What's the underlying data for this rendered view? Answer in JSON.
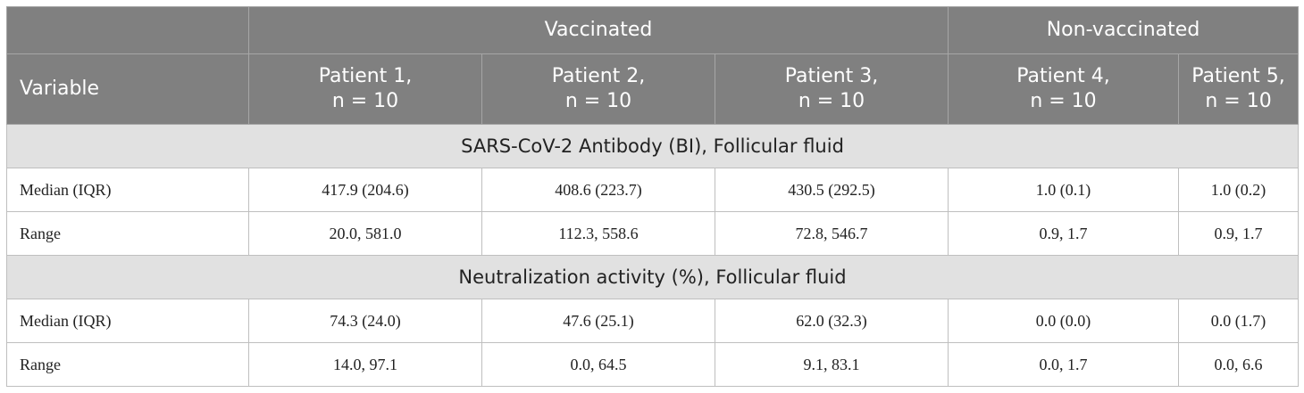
{
  "header": {
    "group_vaccinated": "Vaccinated",
    "group_nonvaccinated": "Non-vaccinated",
    "variable_label": "Variable",
    "patients": [
      {
        "name": "Patient 1,",
        "n": "n = 10"
      },
      {
        "name": "Patient 2,",
        "n": "n = 10"
      },
      {
        "name": "Patient 3,",
        "n": "n = 10"
      },
      {
        "name": "Patient 4,",
        "n": "n = 10"
      },
      {
        "name": "Patient 5,",
        "n": "n = 10"
      }
    ]
  },
  "sections": [
    {
      "title": "SARS-CoV-2 Antibody (BI), Follicular fluid",
      "rows": [
        {
          "label": "Median (IQR)",
          "values": [
            "417.9 (204.6)",
            "408.6 (223.7)",
            "430.5 (292.5)",
            "1.0 (0.1)",
            "1.0 (0.2)"
          ]
        },
        {
          "label": "Range",
          "values": [
            "20.0, 581.0",
            "112.3, 558.6",
            "72.8, 546.7",
            "0.9, 1.7",
            "0.9, 1.7"
          ]
        }
      ]
    },
    {
      "title": "Neutralization activity (%), Follicular fluid",
      "rows": [
        {
          "label": "Median (IQR)",
          "values": [
            "74.3 (24.0)",
            "47.6 (25.1)",
            "62.0 (32.3)",
            "0.0 (0.0)",
            "0.0 (1.7)"
          ]
        },
        {
          "label": "Range",
          "values": [
            "14.0, 97.1",
            "0.0, 64.5",
            "9.1, 83.1",
            "0.0, 1.7",
            "0.0, 6.6"
          ]
        }
      ]
    }
  ]
}
